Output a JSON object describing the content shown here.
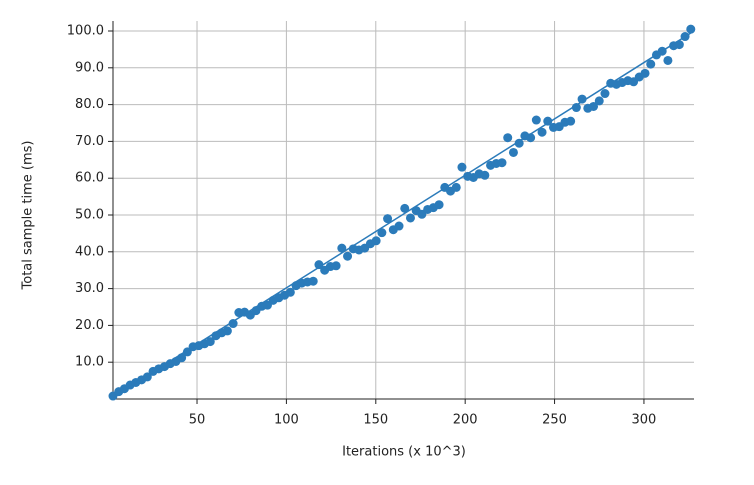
{
  "chart_data": {
    "type": "scatter",
    "x_label": "Iterations (x 10^3)",
    "y_label": "Total sample time (ms)",
    "series": [
      {
        "type": "scatter",
        "color": "#2b7bba",
        "x": [
          3,
          6.2,
          9.4,
          12.6,
          15.8,
          19,
          22.2,
          25.4,
          28.6,
          31.8,
          35,
          38.2,
          41.4,
          44.6,
          47.8,
          51,
          54.2,
          57.4,
          60.6,
          63.8,
          67,
          70.2,
          73.4,
          76.6,
          79.8,
          83,
          86.2,
          89.4,
          92.6,
          95.8,
          99,
          102.2,
          105.4,
          108.6,
          111.8,
          115,
          118.2,
          121.4,
          124.6,
          127.8,
          131,
          134.2,
          137.4,
          140.6,
          143.8,
          147,
          150.2,
          153.4,
          156.6,
          159.8,
          163,
          166.2,
          169.4,
          172.6,
          175.8,
          179,
          182.2,
          185.4,
          188.6,
          191.8,
          195,
          198.2,
          201.4,
          204.6,
          207.8,
          211,
          214.2,
          217.4,
          220.6,
          223.8,
          227,
          230.2,
          233.4,
          236.6,
          239.8,
          243,
          246.2,
          249.4,
          252.6,
          255.8,
          259,
          262.2,
          265.4,
          268.6,
          271.8,
          275,
          278.2,
          281.4,
          284.6,
          287.8,
          291,
          294.2,
          297.4,
          300.6,
          303.8,
          307,
          310.2,
          313.4,
          316.6,
          319.8,
          323,
          326.2
        ],
        "values": [
          0.8,
          2,
          2.8,
          3.8,
          4.5,
          5.2,
          6,
          7.5,
          8.2,
          8.8,
          9.6,
          10.2,
          11.2,
          12.8,
          14.2,
          14.5,
          15,
          15.6,
          17.2,
          18,
          18.5,
          20.5,
          23.5,
          23.6,
          22.8,
          24,
          25.2,
          25.5,
          26.8,
          27.5,
          28.2,
          29,
          30.8,
          31.5,
          31.8,
          32,
          36.5,
          35,
          36,
          36.2,
          41,
          38.8,
          40.8,
          40.5,
          41,
          42.2,
          43,
          45.2,
          49,
          46,
          47,
          51.8,
          49.2,
          51.2,
          50.2,
          51.5,
          52,
          52.8,
          57.5,
          56.5,
          57.5,
          63,
          60.5,
          60.2,
          61.2,
          60.8,
          63.5,
          64,
          64.2,
          71,
          67,
          69.5,
          71.5,
          71,
          75.8,
          72.5,
          75.5,
          73.8,
          74,
          75.2,
          75.5,
          79.2,
          81.5,
          79,
          79.5,
          81,
          83,
          85.8,
          85.5,
          86,
          86.5,
          86.2,
          87.5,
          88.5,
          91,
          93.5,
          94.5,
          92,
          96,
          96.3,
          98.5,
          100.5
        ]
      },
      {
        "type": "line",
        "color": "#2b7bba",
        "x": [
          3,
          328
        ],
        "values": [
          0.5,
          100
        ]
      }
    ],
    "xlim": [
      3,
      328
    ],
    "ylim": [
      0,
      100
    ],
    "xticks": [
      50,
      100,
      150,
      200,
      250,
      300
    ],
    "yticks": [
      {
        "value": 10,
        "label": "10.0"
      },
      {
        "value": 20,
        "label": "20.0"
      },
      {
        "value": 30,
        "label": "30.0"
      },
      {
        "value": 40,
        "label": "40.0"
      },
      {
        "value": 50,
        "label": "50.0"
      },
      {
        "value": 60,
        "label": "60.0"
      },
      {
        "value": 70,
        "label": "70.0"
      },
      {
        "value": 80,
        "label": "80.0"
      },
      {
        "value": 90,
        "label": "90.0"
      },
      {
        "value": 100,
        "label": "100.0"
      }
    ],
    "grid": true
  }
}
